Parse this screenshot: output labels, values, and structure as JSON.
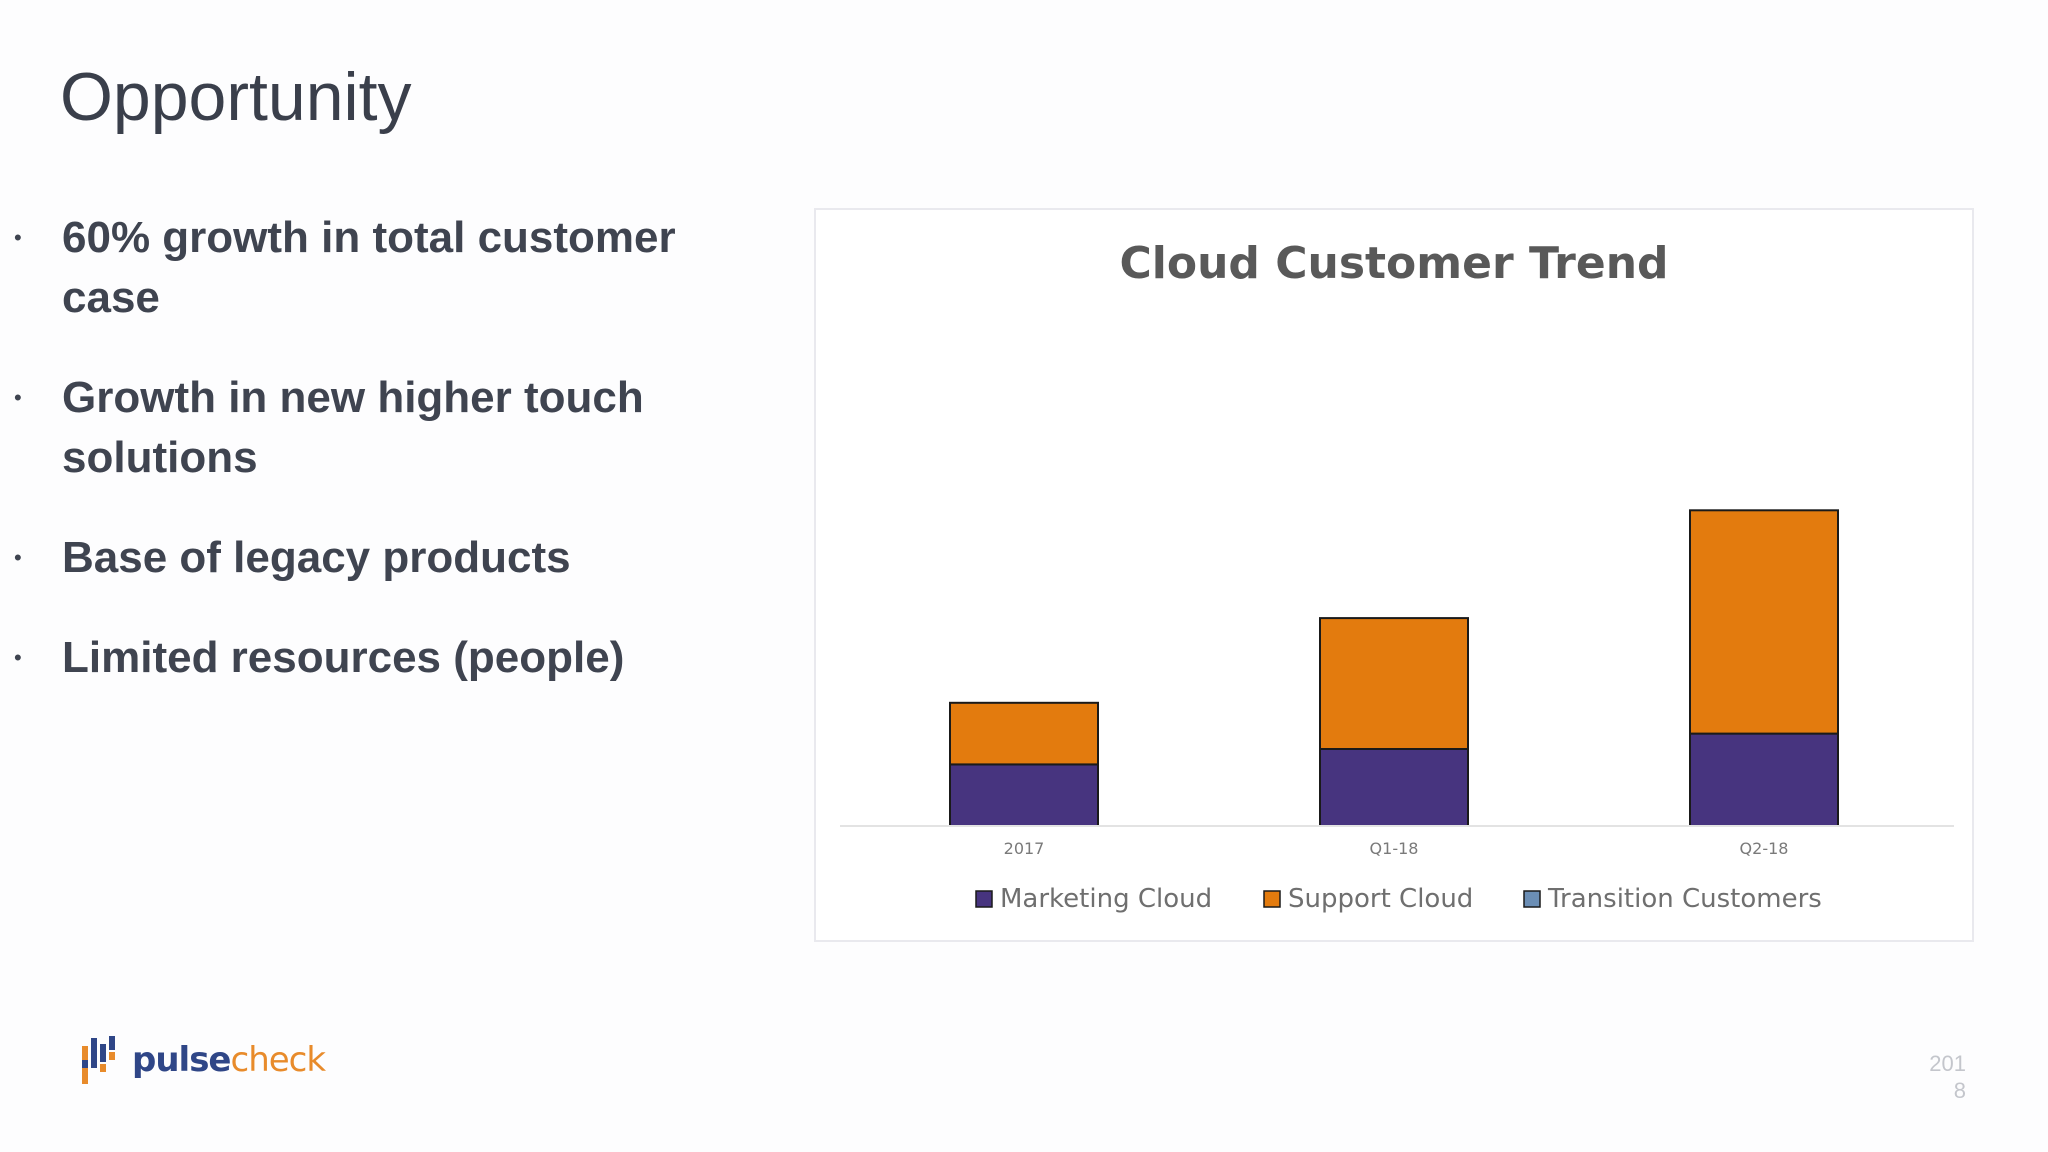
{
  "slide": {
    "title": "Opportunity",
    "bullets": [
      "60% growth in total customer case",
      "Growth in new higher touch solutions",
      "Base of legacy products",
      "Limited resources (people)"
    ],
    "bullet_marker": "•",
    "logo": {
      "text_bold": "pulse",
      "text_light": "check"
    },
    "page_number_line1": "201",
    "page_number_line2": "8"
  },
  "chart_data": {
    "type": "bar",
    "stacked": true,
    "title": "Cloud Customer Trend",
    "categories": [
      "2017",
      "Q1-18",
      "Q2-18"
    ],
    "series": [
      {
        "name": "Marketing Cloud",
        "color": "#47347f",
        "values": [
          40,
          50,
          60
        ]
      },
      {
        "name": "Support Cloud",
        "color": "#e37b0e",
        "values": [
          40,
          85,
          145
        ]
      },
      {
        "name": "Transition Customers",
        "color": "#6b8eb5",
        "values": [
          0,
          0,
          0
        ]
      }
    ],
    "ylim": [
      0,
      400
    ],
    "grid": false,
    "legend": "bottom"
  }
}
